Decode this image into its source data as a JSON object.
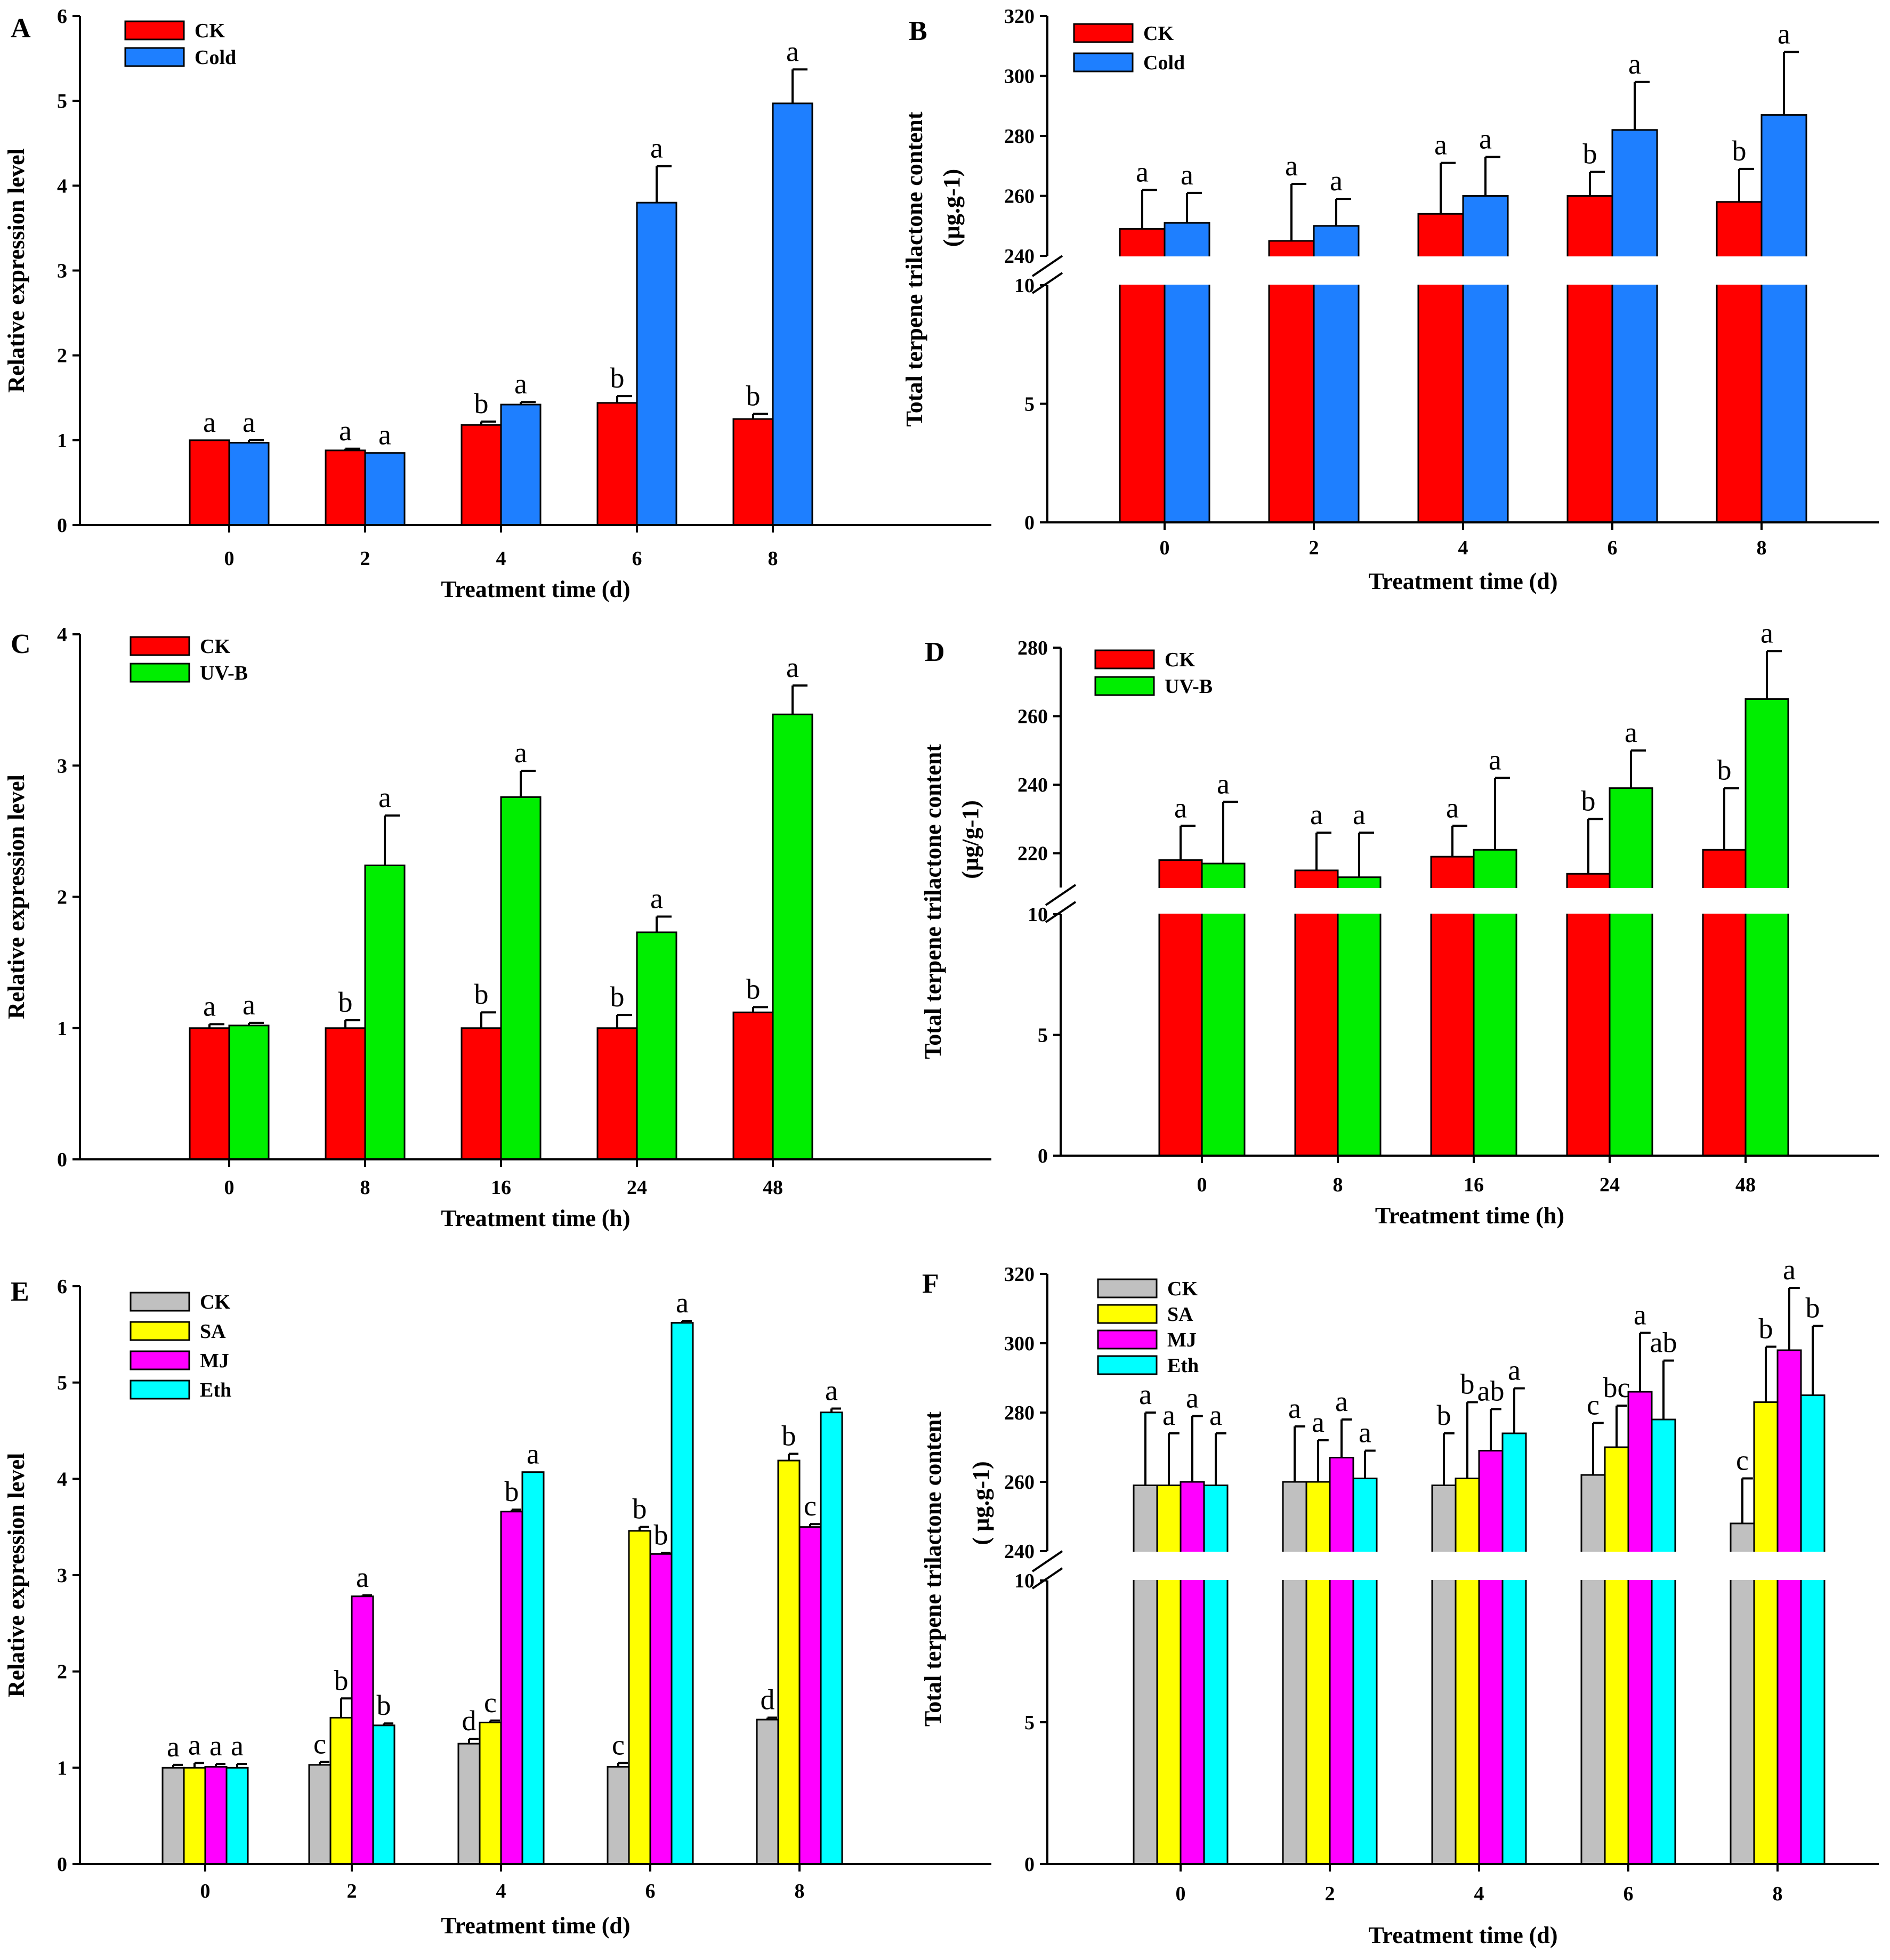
{
  "figure": {
    "colors": {
      "CK": "#ff0000",
      "Cold": "#1e7fff",
      "UV-B": "#00ee00",
      "CK_gray": "#c0c0c0",
      "SA": "#ffff00",
      "MJ": "#ff00ff",
      "Eth": "#00ffff",
      "axis": "#000000"
    }
  },
  "chart_data": [
    {
      "panel": "A",
      "type": "bar",
      "xlabel": "Treatment time (d)",
      "ylabel": "Relative expression level",
      "ylim": [
        0,
        6
      ],
      "yticks": [
        "0",
        "1",
        "2",
        "3",
        "4",
        "5",
        "6"
      ],
      "categories": [
        "0",
        "2",
        "4",
        "6",
        "8"
      ],
      "legend": [
        "CK",
        "Cold"
      ],
      "series": [
        {
          "name": "CK",
          "color": "#ff0000",
          "values": [
            1.0,
            0.88,
            1.18,
            1.44,
            1.25
          ],
          "errors": [
            0.0,
            0.02,
            0.04,
            0.08,
            0.06
          ],
          "labels": [
            "a",
            "a",
            "b",
            "b",
            "b"
          ]
        },
        {
          "name": "Cold",
          "color": "#1e7fff",
          "values": [
            0.97,
            0.85,
            1.42,
            3.8,
            4.97
          ],
          "errors": [
            0.03,
            0.0,
            0.03,
            0.43,
            0.4
          ],
          "labels": [
            "a",
            "a",
            "a",
            "a",
            "a"
          ]
        }
      ]
    },
    {
      "panel": "B",
      "type": "bar",
      "xlabel": "Treatment time (d)",
      "ylabel": "Total terpene trilactone  content",
      "ylabel2": "(µg.g-1)",
      "broken_axis": true,
      "ylim_upper": [
        240,
        320
      ],
      "yticks_upper": [
        "240",
        "260",
        "280",
        "300",
        "320"
      ],
      "ylim_lower": [
        0,
        10
      ],
      "yticks_lower": [
        "0",
        "5",
        "10"
      ],
      "categories": [
        "0",
        "2",
        "4",
        "6",
        "8"
      ],
      "legend": [
        "CK",
        "Cold"
      ],
      "series": [
        {
          "name": "CK",
          "color": "#ff0000",
          "values": [
            249,
            245,
            254,
            260,
            258
          ],
          "errors": [
            13,
            19,
            17,
            8,
            11
          ],
          "labels": [
            "a",
            "a",
            "a",
            "b",
            "b"
          ]
        },
        {
          "name": "Cold",
          "color": "#1e7fff",
          "values": [
            251,
            250,
            260,
            282,
            287
          ],
          "errors": [
            10,
            9,
            13,
            16,
            21
          ],
          "labels": [
            "a",
            "a",
            "a",
            "a",
            "a"
          ]
        }
      ]
    },
    {
      "panel": "C",
      "type": "bar",
      "xlabel": "Treatment time (h)",
      "ylabel": "Relative expression level",
      "ylim": [
        0,
        4
      ],
      "yticks": [
        "0",
        "1",
        "2",
        "3",
        "4"
      ],
      "categories": [
        "0",
        "8",
        "16",
        "24",
        "48"
      ],
      "legend": [
        "CK",
        "UV-B"
      ],
      "series": [
        {
          "name": "CK",
          "color": "#ff0000",
          "values": [
            1.0,
            1.0,
            1.0,
            1.0,
            1.12
          ],
          "errors": [
            0.03,
            0.06,
            0.12,
            0.1,
            0.04
          ],
          "labels": [
            "a",
            "b",
            "b",
            "b",
            "b"
          ]
        },
        {
          "name": "UV-B",
          "color": "#00ee00",
          "values": [
            1.02,
            2.24,
            2.76,
            1.73,
            3.39
          ],
          "errors": [
            0.02,
            0.38,
            0.2,
            0.12,
            0.22
          ],
          "labels": [
            "a",
            "a",
            "a",
            "a",
            "a"
          ]
        }
      ]
    },
    {
      "panel": "D",
      "type": "bar",
      "xlabel": "Treatment time (h)",
      "ylabel": "Total terpene trilactone content",
      "ylabel2": "(µg/g-1)",
      "broken_axis": true,
      "ylim_upper": [
        210,
        280
      ],
      "yticks_upper": [
        "220",
        "240",
        "260",
        "280"
      ],
      "ylim_lower": [
        0,
        10
      ],
      "yticks_lower": [
        "0",
        "5",
        "10"
      ],
      "categories": [
        "0",
        "8",
        "16",
        "24",
        "48"
      ],
      "legend": [
        "CK",
        "UV-B"
      ],
      "series": [
        {
          "name": "CK",
          "color": "#ff0000",
          "values": [
            218,
            215,
            219,
            214,
            221
          ],
          "errors": [
            10,
            11,
            9,
            16,
            18
          ],
          "labels": [
            "a",
            "a",
            "a",
            "b",
            "b"
          ]
        },
        {
          "name": "UV-B",
          "color": "#00ee00",
          "values": [
            217,
            213,
            221,
            239,
            265
          ],
          "errors": [
            18,
            13,
            21,
            11,
            14
          ],
          "labels": [
            "a",
            "a",
            "a",
            "a",
            "a"
          ]
        }
      ]
    },
    {
      "panel": "E",
      "type": "bar",
      "xlabel": "Treatment time (d)",
      "ylabel": "Relative expression level",
      "ylim": [
        0,
        6
      ],
      "yticks": [
        "0",
        "1",
        "2",
        "3",
        "4",
        "5",
        "6"
      ],
      "categories": [
        "0",
        "2",
        "4",
        "6",
        "8"
      ],
      "legend": [
        "CK",
        "SA",
        "MJ",
        "Eth"
      ],
      "series": [
        {
          "name": "CK",
          "color": "#c0c0c0",
          "values": [
            1.0,
            1.03,
            1.25,
            1.01,
            1.5
          ],
          "errors": [
            0.03,
            0.03,
            0.05,
            0.04,
            0.02
          ],
          "labels": [
            "a",
            "c",
            "d",
            "c",
            "d"
          ]
        },
        {
          "name": "SA",
          "color": "#ffff00",
          "values": [
            1.0,
            1.52,
            1.47,
            3.46,
            4.19
          ],
          "errors": [
            0.05,
            0.2,
            0.02,
            0.04,
            0.07
          ],
          "labels": [
            "a",
            "b",
            "c",
            "b",
            "b"
          ]
        },
        {
          "name": "MJ",
          "color": "#ff00ff",
          "values": [
            1.01,
            2.78,
            3.66,
            3.22,
            3.5
          ],
          "errors": [
            0.03,
            0.01,
            0.02,
            0.01,
            0.03
          ],
          "labels": [
            "a",
            "a",
            "b",
            "b",
            "c"
          ]
        },
        {
          "name": "Eth",
          "color": "#00ffff",
          "values": [
            1.0,
            1.44,
            4.07,
            5.62,
            4.69
          ],
          "errors": [
            0.04,
            0.02,
            0.0,
            0.02,
            0.04
          ],
          "labels": [
            "a",
            "b",
            "a",
            "a",
            "a"
          ]
        }
      ]
    },
    {
      "panel": "F",
      "type": "bar",
      "xlabel": "Treatment time (d)",
      "ylabel": "Total terpene trilactone content",
      "ylabel2": "( µg.g-1)",
      "broken_axis": true,
      "ylim_upper": [
        240,
        320
      ],
      "yticks_upper": [
        "240",
        "260",
        "280",
        "300",
        "320"
      ],
      "ylim_lower": [
        0,
        10
      ],
      "yticks_lower": [
        "0",
        "5",
        "10"
      ],
      "categories": [
        "0",
        "2",
        "4",
        "6",
        "8"
      ],
      "legend": [
        "CK",
        "SA",
        "MJ",
        "Eth"
      ],
      "series": [
        {
          "name": "CK",
          "color": "#c0c0c0",
          "values": [
            259,
            260,
            259,
            262,
            248
          ],
          "errors": [
            21,
            16,
            15,
            15,
            13
          ],
          "labels": [
            "a",
            "a",
            "b",
            "c",
            "c"
          ]
        },
        {
          "name": "SA",
          "color": "#ffff00",
          "values": [
            259,
            260,
            261,
            270,
            283
          ],
          "errors": [
            15,
            12,
            22,
            12,
            16
          ],
          "labels": [
            "a",
            "a",
            "b",
            "bc",
            "b"
          ]
        },
        {
          "name": "MJ",
          "color": "#ff00ff",
          "values": [
            260,
            267,
            269,
            286,
            298
          ],
          "errors": [
            19,
            11,
            12,
            17,
            18
          ],
          "labels": [
            "a",
            "a",
            "ab",
            "a",
            "a"
          ]
        },
        {
          "name": "Eth",
          "color": "#00ffff",
          "values": [
            259,
            261,
            274,
            278,
            285
          ],
          "errors": [
            15,
            8,
            13,
            17,
            20
          ],
          "labels": [
            "a",
            "a",
            "a",
            "ab",
            "b"
          ]
        }
      ]
    }
  ]
}
